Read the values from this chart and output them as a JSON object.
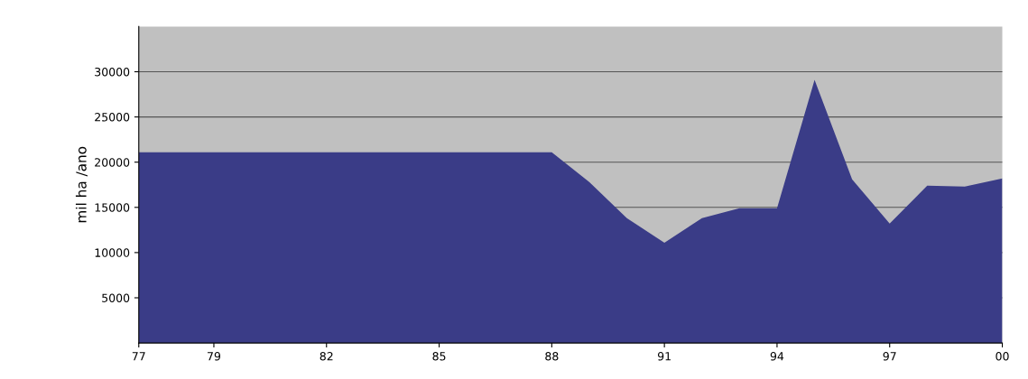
{
  "chart_data": {
    "type": "area",
    "ylabel": "mil ha /ano",
    "x": [
      1977,
      1978,
      1979,
      1980,
      1981,
      1982,
      1983,
      1984,
      1985,
      1986,
      1987,
      1988,
      1989,
      1990,
      1991,
      1992,
      1993,
      1994,
      1995,
      1996,
      1997,
      1998,
      1999,
      2000
    ],
    "series": [
      {
        "color": "#3a3c87",
        "values": [
          21100,
          21100,
          21100,
          21100,
          21100,
          21100,
          21100,
          21100,
          21100,
          21100,
          21100,
          21100,
          17800,
          13800,
          11100,
          13800,
          14900,
          14900,
          29100,
          18100,
          13200,
          17400,
          17300,
          18200
        ]
      }
    ],
    "xlim": [
      1977,
      2000
    ],
    "xticks": [
      {
        "value": 1977,
        "label": "77"
      },
      {
        "value": 1979,
        "label": "79"
      },
      {
        "value": 1982,
        "label": "82"
      },
      {
        "value": 1985,
        "label": "85"
      },
      {
        "value": 1988,
        "label": "88"
      },
      {
        "value": 1991,
        "label": "91"
      },
      {
        "value": 1994,
        "label": "94"
      },
      {
        "value": 1997,
        "label": "97"
      },
      {
        "value": 2000,
        "label": "00"
      }
    ],
    "ylim": [
      0,
      35000
    ],
    "yticks": [
      5000,
      10000,
      15000,
      20000,
      25000,
      30000
    ],
    "grid": "y"
  }
}
